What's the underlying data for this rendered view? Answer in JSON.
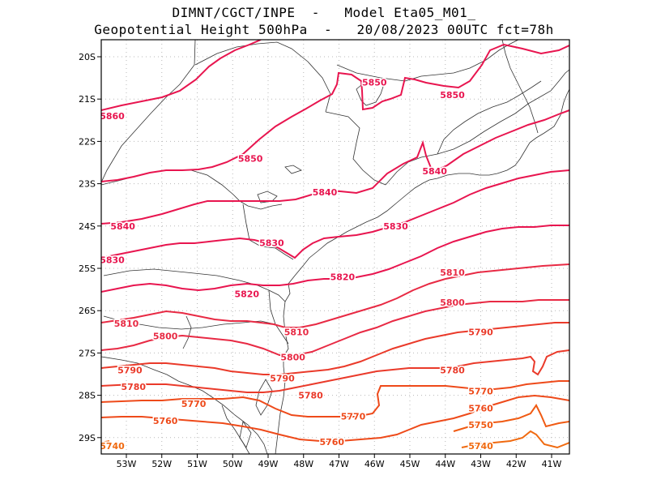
{
  "title": {
    "line1": "DIMNT/CGCT/INPE  -   Model Eta05_M01_",
    "line2": "Geopotential Height 500hPa  -   20/08/2023 00UTC fct=78h"
  },
  "axes": {
    "lon_labels": [
      "53W",
      "52W",
      "51W",
      "50W",
      "49W",
      "48W",
      "47W",
      "46W",
      "45W",
      "44W",
      "43W",
      "42W",
      "41W"
    ],
    "lat_labels": [
      "20S",
      "21S",
      "22S",
      "23S",
      "24S",
      "25S",
      "26S",
      "27S",
      "28S",
      "29S"
    ]
  },
  "contours": [
    {
      "value": 5860,
      "color": "#e8154f",
      "labels": [
        {
          "text": "5860",
          "lon": -53.4,
          "lat": -21.4
        }
      ]
    },
    {
      "value": 5850,
      "color": "#e8154f",
      "labels": [
        {
          "text": "5850",
          "lon": -49.5,
          "lat": -22.4
        },
        {
          "text": "5850",
          "lon": -46.0,
          "lat": -20.6
        },
        {
          "text": "5850",
          "lon": -43.8,
          "lat": -20.9
        }
      ]
    },
    {
      "value": 5840,
      "color": "#e8154f",
      "labels": [
        {
          "text": "5840",
          "lon": -53.1,
          "lat": -24.0
        },
        {
          "text": "5840",
          "lon": -47.4,
          "lat": -23.2
        },
        {
          "text": "5840",
          "lon": -44.3,
          "lat": -22.7
        }
      ]
    },
    {
      "value": 5830,
      "color": "#e8154f",
      "labels": [
        {
          "text": "5830",
          "lon": -53.4,
          "lat": -24.8
        },
        {
          "text": "5830",
          "lon": -48.9,
          "lat": -24.4
        },
        {
          "text": "5830",
          "lon": -45.4,
          "lat": -24.0
        }
      ]
    },
    {
      "value": 5820,
      "color": "#e8154f",
      "labels": [
        {
          "text": "5820",
          "lon": -49.6,
          "lat": -25.6
        },
        {
          "text": "5820",
          "lon": -46.9,
          "lat": -25.2
        }
      ]
    },
    {
      "value": 5810,
      "color": "#e82a44",
      "labels": [
        {
          "text": "5810",
          "lon": -53.0,
          "lat": -26.3
        },
        {
          "text": "5810",
          "lon": -48.2,
          "lat": -26.5
        },
        {
          "text": "5810",
          "lon": -43.8,
          "lat": -25.1
        }
      ]
    },
    {
      "value": 5800,
      "color": "#e82a44",
      "labels": [
        {
          "text": "5800",
          "lon": -51.9,
          "lat": -26.6
        },
        {
          "text": "5800",
          "lon": -48.3,
          "lat": -27.1
        },
        {
          "text": "5800",
          "lon": -43.8,
          "lat": -25.8
        }
      ]
    },
    {
      "value": 5790,
      "color": "#ea3a2a",
      "labels": [
        {
          "text": "5790",
          "lon": -52.9,
          "lat": -27.4
        },
        {
          "text": "5790",
          "lon": -48.6,
          "lat": -27.6
        },
        {
          "text": "5790",
          "lon": -43.0,
          "lat": -26.5
        }
      ]
    },
    {
      "value": 5780,
      "color": "#ea3a2a",
      "labels": [
        {
          "text": "5780",
          "lon": -52.8,
          "lat": -27.8
        },
        {
          "text": "5780",
          "lon": -47.8,
          "lat": -28.0
        },
        {
          "text": "5780",
          "lon": -43.8,
          "lat": -27.4
        }
      ]
    },
    {
      "value": 5770,
      "color": "#ee4a1a",
      "labels": [
        {
          "text": "5770",
          "lon": -51.1,
          "lat": -28.2
        },
        {
          "text": "5770",
          "lon": -46.6,
          "lat": -28.5
        },
        {
          "text": "5770",
          "lon": -43.0,
          "lat": -27.9
        }
      ]
    },
    {
      "value": 5760,
      "color": "#ee4a1a",
      "labels": [
        {
          "text": "5760",
          "lon": -51.9,
          "lat": -28.6
        },
        {
          "text": "5760",
          "lon": -47.2,
          "lat": -29.1
        },
        {
          "text": "5760",
          "lon": -43.0,
          "lat": -28.3
        }
      ]
    },
    {
      "value": 5750,
      "color": "#f05a12",
      "labels": [
        {
          "text": "5750",
          "lon": -43.0,
          "lat": -28.7
        }
      ]
    },
    {
      "value": 5740,
      "color": "#f06a10",
      "labels": [
        {
          "text": "5740",
          "lon": -53.4,
          "lat": -29.2
        },
        {
          "text": "5740",
          "lon": -43.0,
          "lat": -29.2
        }
      ]
    }
  ]
}
